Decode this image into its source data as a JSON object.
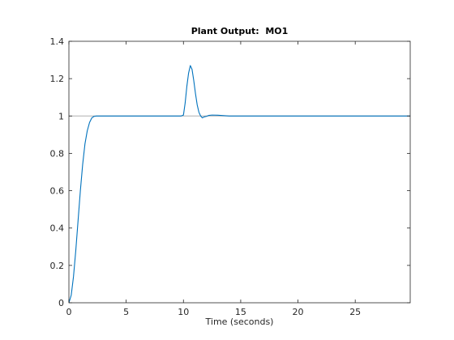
{
  "chart_data": {
    "type": "line",
    "title": "Plant Output:  MO1",
    "xlabel": "Time (seconds)",
    "ylabel": "",
    "xlim": [
      0,
      29.8
    ],
    "ylim": [
      0,
      1.4
    ],
    "x_ticks": [
      0,
      5,
      10,
      15,
      20,
      25
    ],
    "x_tick_labels": [
      "0",
      "5",
      "10",
      "15",
      "20",
      "25"
    ],
    "y_ticks": [
      0,
      0.2,
      0.4,
      0.6,
      0.8,
      1.0,
      1.2,
      1.4
    ],
    "y_tick_labels": [
      "0",
      "0.2",
      "0.4",
      "0.6",
      "0.8",
      "1",
      "1.2",
      "1.4"
    ],
    "grid": false,
    "reference_line": {
      "y": 1,
      "color": "#b0b0b0"
    },
    "series": [
      {
        "color": "#0072bd",
        "x": [
          0,
          0.2,
          0.4,
          0.6,
          0.8,
          1.0,
          1.2,
          1.4,
          1.6,
          1.8,
          2.0,
          2.2,
          2.4,
          2.6,
          3.0,
          4.0,
          6.0,
          8.0,
          9.8,
          10.0,
          10.15,
          10.3,
          10.45,
          10.6,
          10.75,
          10.9,
          11.05,
          11.2,
          11.35,
          11.5,
          11.65,
          11.8,
          12.0,
          12.2,
          12.5,
          13.0,
          13.5,
          14.0,
          15.0,
          20.0,
          25.0,
          29.8
        ],
        "y": [
          0,
          0.04,
          0.14,
          0.28,
          0.44,
          0.6,
          0.74,
          0.85,
          0.92,
          0.965,
          0.99,
          0.998,
          1.0,
          1.0,
          1.0,
          1.0,
          1.0,
          1.0,
          1.0,
          1.005,
          1.07,
          1.16,
          1.23,
          1.27,
          1.25,
          1.19,
          1.12,
          1.06,
          1.02,
          1.0,
          0.99,
          0.995,
          0.998,
          1.003,
          1.005,
          1.004,
          1.002,
          1.0,
          1.0,
          1.0,
          1.0,
          1.0
        ]
      }
    ]
  }
}
